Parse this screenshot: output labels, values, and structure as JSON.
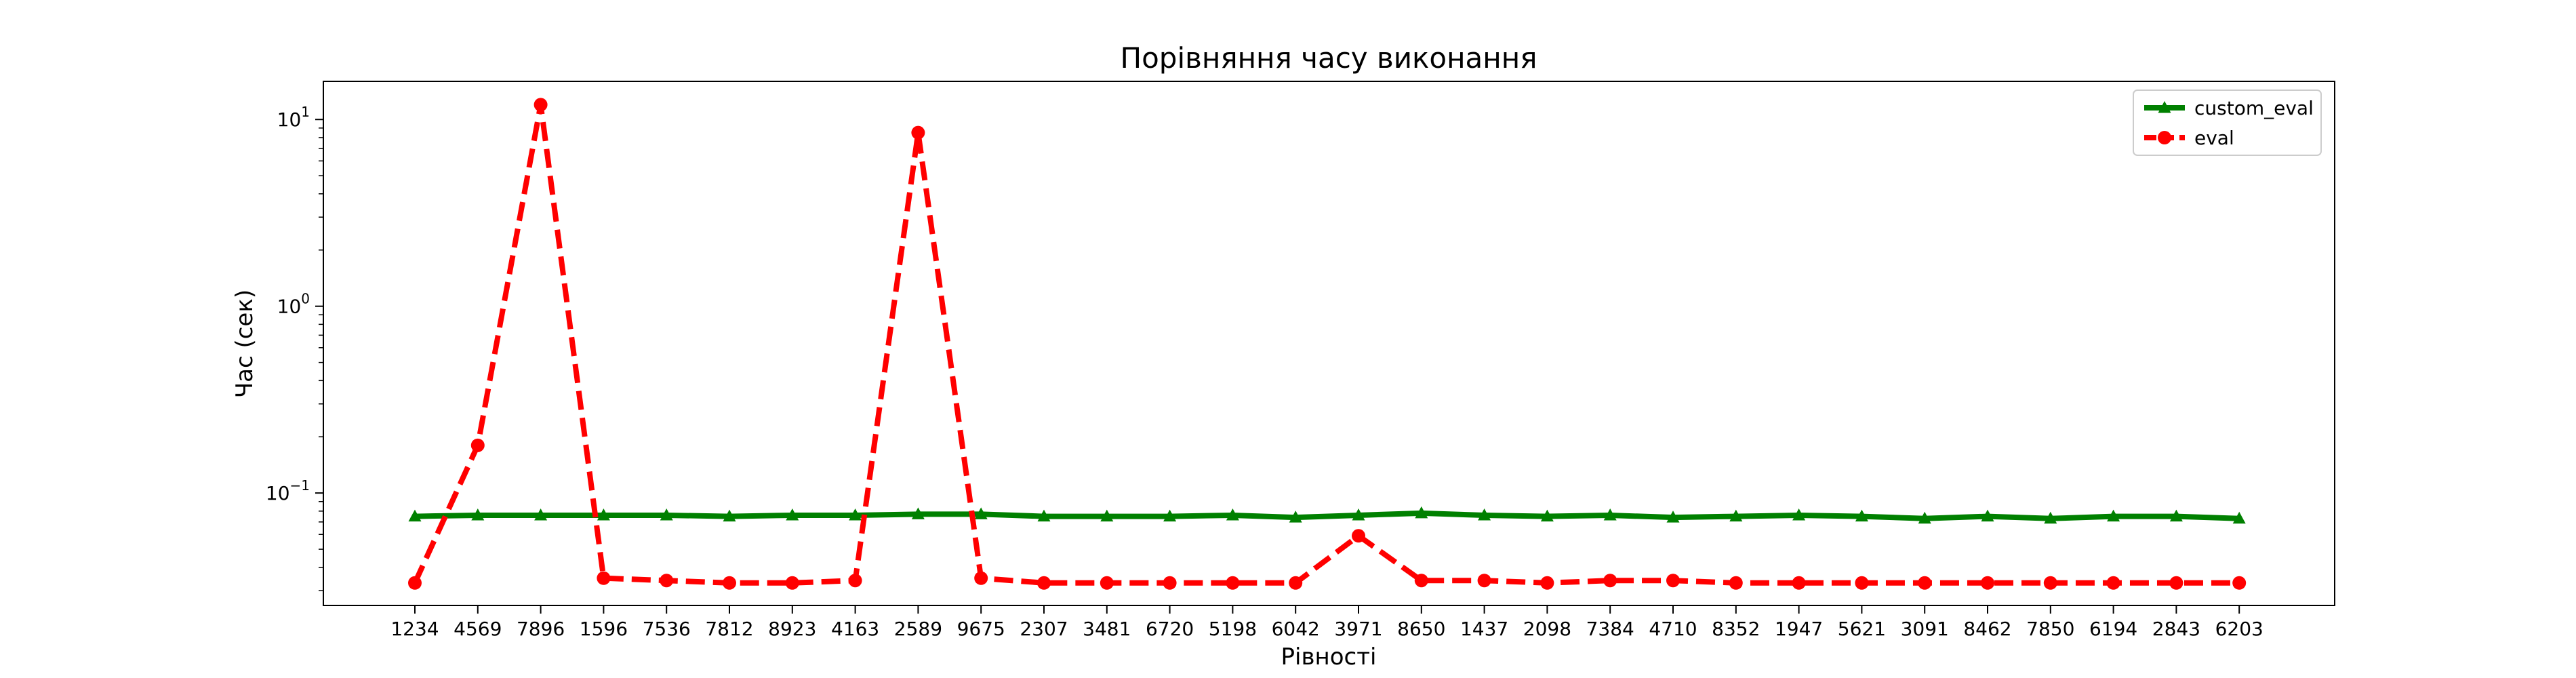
{
  "chart_data": {
    "type": "line",
    "title": "Порівняння часу виконання",
    "xlabel": "Рівності",
    "ylabel": "Час (сек)",
    "yscale": "log",
    "ylim": [
      0.025,
      16
    ],
    "yticks": [
      {
        "value": 0.1,
        "base": "10",
        "exp": "−1"
      },
      {
        "value": 1,
        "base": "10",
        "exp": "0"
      },
      {
        "value": 10,
        "base": "10",
        "exp": "1"
      }
    ],
    "grid": false,
    "legend": "top-right",
    "categories": [
      "1234",
      "4569",
      "7896",
      "1596",
      "7536",
      "7812",
      "8923",
      "4163",
      "2589",
      "9675",
      "2307",
      "3481",
      "6720",
      "5198",
      "6042",
      "3971",
      "8650",
      "1437",
      "2098",
      "7384",
      "4710",
      "8352",
      "1947",
      "5621",
      "3091",
      "8462",
      "7850",
      "6194",
      "2843",
      "6203"
    ],
    "series": [
      {
        "name": "custom_eval",
        "color": "#008000",
        "marker": "triangle",
        "linestyle": "solid",
        "values": [
          0.075,
          0.076,
          0.076,
          0.076,
          0.076,
          0.075,
          0.076,
          0.076,
          0.077,
          0.077,
          0.075,
          0.075,
          0.075,
          0.076,
          0.074,
          0.076,
          0.078,
          0.076,
          0.075,
          0.076,
          0.074,
          0.075,
          0.076,
          0.075,
          0.073,
          0.075,
          0.073,
          0.075,
          0.075,
          0.073
        ]
      },
      {
        "name": "eval",
        "color": "#ff0000",
        "marker": "circle",
        "linestyle": "dashed",
        "values": [
          0.033,
          0.18,
          12.0,
          0.035,
          0.034,
          0.033,
          0.033,
          0.034,
          8.5,
          0.035,
          0.033,
          0.033,
          0.033,
          0.033,
          0.033,
          0.059,
          0.034,
          0.034,
          0.033,
          0.034,
          0.034,
          0.033,
          0.033,
          0.033,
          0.033,
          0.033,
          0.033,
          0.033,
          0.033,
          0.033
        ]
      }
    ]
  }
}
